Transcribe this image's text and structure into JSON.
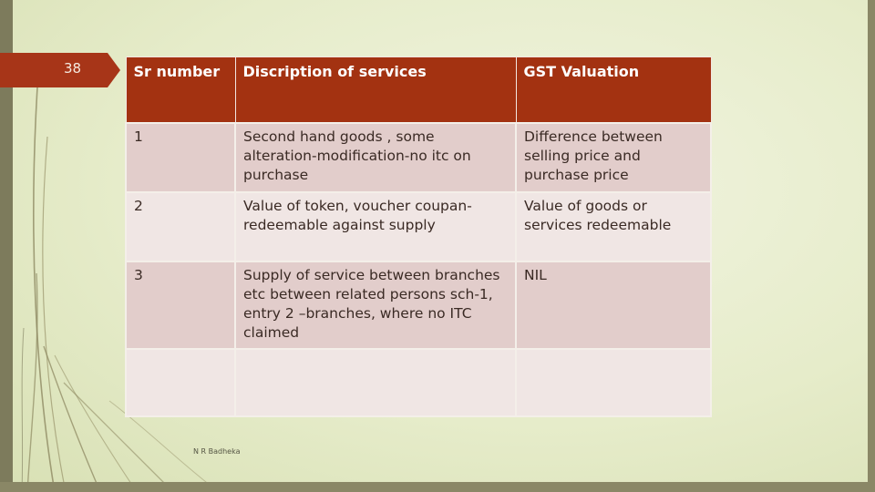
{
  "slide": {
    "number": "38",
    "footer": "N R Badheka",
    "colors": {
      "accent": "#a33211",
      "row_dark": "#e2cdcb",
      "row_light": "#f0e6e4",
      "background": "#e6ecca"
    }
  },
  "table": {
    "headers": [
      "Sr number",
      "Discription of services",
      "GST Valuation"
    ],
    "rows": [
      [
        "1",
        "Second hand goods , some alteration-modification-no itc on purchase",
        "Difference between selling price and purchase price"
      ],
      [
        "2",
        "Value of token, voucher coupan-redeemable against supply",
        "Value of goods or services redeemable"
      ],
      [
        "3",
        "Supply of service between branches etc between related persons sch-1, entry 2 –branches, where no ITC claimed",
        "NIL"
      ],
      [
        "",
        "",
        ""
      ]
    ]
  }
}
